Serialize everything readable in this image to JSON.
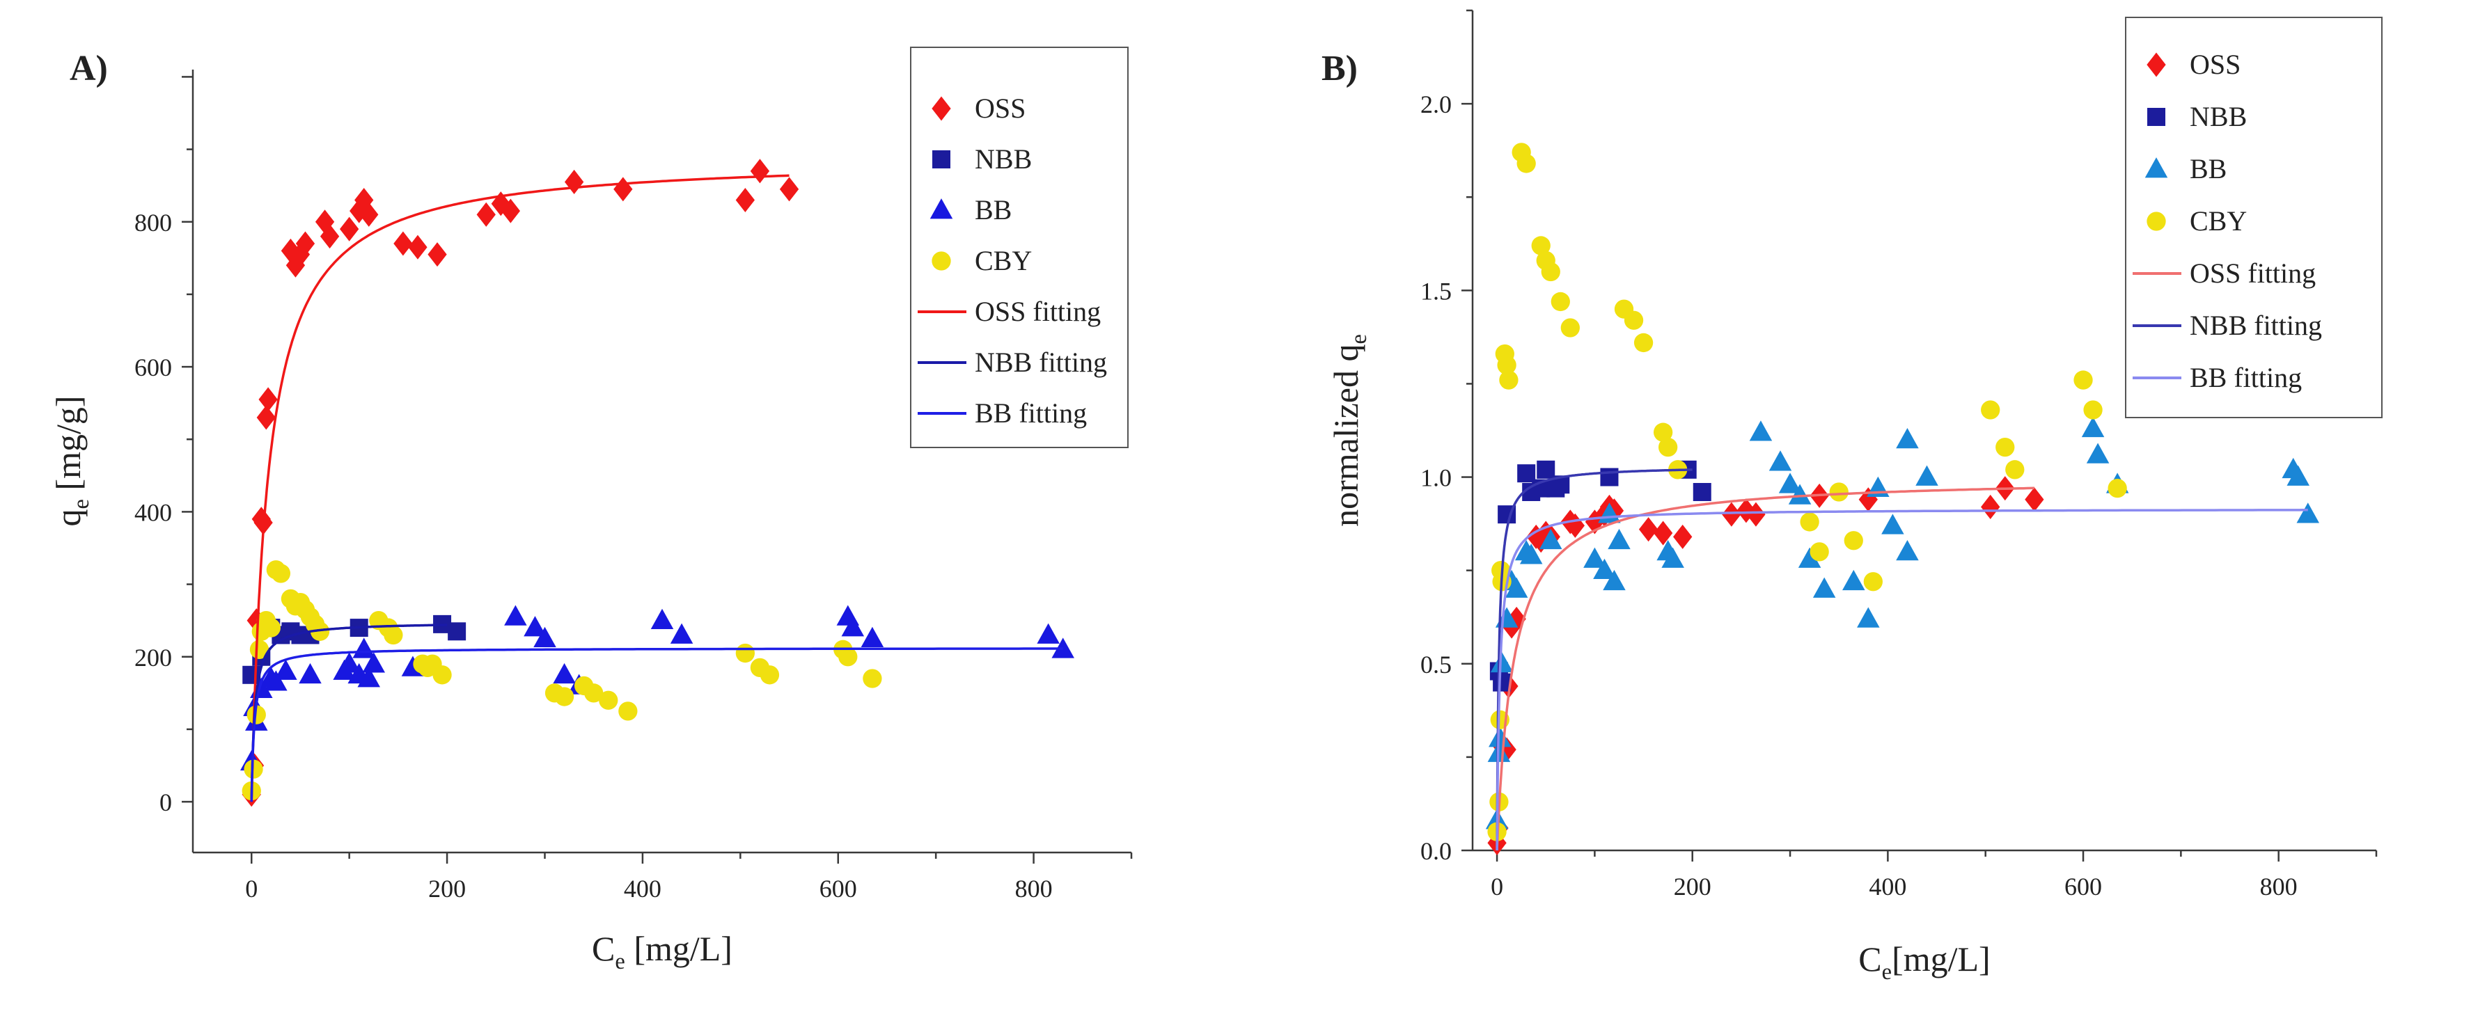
{
  "colors": {
    "OSS": "#f01818",
    "NBB": "#1c1c9c",
    "BB_A": "#1818e0",
    "BB_B": "#1a86d6",
    "CBY": "#f0e010",
    "OSS_fit": "#f01818",
    "NBB_fit": "#1a1aa8",
    "BB_fit_A": "#1e1ee6",
    "OSS_fit_B": "#f07070",
    "NBB_fit_B": "#3838b0",
    "BB_fit_B": "#8a8af0"
  },
  "chart_data": [
    {
      "type": "scatter",
      "panel_label": "A)",
      "title": "",
      "xlabel_main": "C",
      "xlabel_sub": "e",
      "xlabel_rest": " [mg/L]",
      "ylabel_main": "q",
      "ylabel_sub": "e",
      "ylabel_rest": " [mg/g]",
      "xlim": [
        -60,
        900
      ],
      "ylim": [
        -70,
        1010
      ],
      "xticks": [
        0,
        200,
        400,
        600,
        800
      ],
      "xtick_labels": [
        "0",
        "200",
        "400",
        "600",
        "800"
      ],
      "yticks": [
        0,
        200,
        400,
        600,
        800
      ],
      "ytick_labels": [
        "0",
        "200",
        "400",
        "600",
        "800"
      ],
      "legend": [
        "OSS",
        "NBB",
        "BB",
        "CBY",
        "OSS fitting",
        "NBB fitting",
        "BB fitting"
      ],
      "legend_position": "top-right",
      "series": [
        {
          "name": "OSS",
          "marker": "diamond",
          "color_key": "OSS",
          "points": [
            [
              0,
              10
            ],
            [
              3,
              50
            ],
            [
              5,
              250
            ],
            [
              10,
              390
            ],
            [
              12,
              385
            ],
            [
              15,
              530
            ],
            [
              17,
              555
            ],
            [
              40,
              760
            ],
            [
              45,
              740
            ],
            [
              50,
              755
            ],
            [
              55,
              770
            ],
            [
              75,
              800
            ],
            [
              80,
              780
            ],
            [
              100,
              790
            ],
            [
              110,
              815
            ],
            [
              115,
              830
            ],
            [
              120,
              810
            ],
            [
              155,
              770
            ],
            [
              170,
              765
            ],
            [
              190,
              755
            ],
            [
              240,
              810
            ],
            [
              255,
              825
            ],
            [
              265,
              815
            ],
            [
              330,
              855
            ],
            [
              380,
              845
            ],
            [
              505,
              830
            ],
            [
              520,
              870
            ],
            [
              550,
              845
            ]
          ]
        },
        {
          "name": "NBB",
          "marker": "square",
          "color_key": "NBB",
          "points": [
            [
              0,
              175
            ],
            [
              10,
              200
            ],
            [
              20,
              240
            ],
            [
              30,
              230
            ],
            [
              40,
              235
            ],
            [
              50,
              230
            ],
            [
              60,
              230
            ],
            [
              110,
              240
            ],
            [
              195,
              245
            ],
            [
              210,
              235
            ]
          ]
        },
        {
          "name": "BB",
          "marker": "triangle",
          "color_key": "BB_A",
          "points": [
            [
              0,
              55
            ],
            [
              3,
              130
            ],
            [
              5,
              110
            ],
            [
              10,
              155
            ],
            [
              20,
              170
            ],
            [
              25,
              165
            ],
            [
              35,
              180
            ],
            [
              60,
              175
            ],
            [
              95,
              180
            ],
            [
              100,
              190
            ],
            [
              110,
              175
            ],
            [
              115,
              210
            ],
            [
              120,
              170
            ],
            [
              125,
              190
            ],
            [
              165,
              185
            ],
            [
              270,
              255
            ],
            [
              290,
              240
            ],
            [
              300,
              225
            ],
            [
              320,
              175
            ],
            [
              335,
              160
            ],
            [
              420,
              250
            ],
            [
              440,
              230
            ],
            [
              610,
              255
            ],
            [
              615,
              240
            ],
            [
              635,
              225
            ],
            [
              815,
              230
            ],
            [
              830,
              210
            ]
          ]
        },
        {
          "name": "CBY",
          "marker": "circle",
          "color_key": "CBY",
          "points": [
            [
              0,
              15
            ],
            [
              2,
              45
            ],
            [
              5,
              120
            ],
            [
              8,
              210
            ],
            [
              10,
              235
            ],
            [
              15,
              250
            ],
            [
              20,
              240
            ],
            [
              25,
              320
            ],
            [
              30,
              315
            ],
            [
              40,
              280
            ],
            [
              45,
              270
            ],
            [
              50,
              275
            ],
            [
              55,
              265
            ],
            [
              60,
              255
            ],
            [
              65,
              245
            ],
            [
              70,
              235
            ],
            [
              130,
              250
            ],
            [
              140,
              240
            ],
            [
              145,
              230
            ],
            [
              175,
              190
            ],
            [
              180,
              185
            ],
            [
              185,
              190
            ],
            [
              195,
              175
            ],
            [
              310,
              150
            ],
            [
              320,
              145
            ],
            [
              340,
              160
            ],
            [
              350,
              150
            ],
            [
              365,
              140
            ],
            [
              385,
              125
            ],
            [
              505,
              205
            ],
            [
              520,
              185
            ],
            [
              530,
              175
            ],
            [
              605,
              210
            ],
            [
              610,
              200
            ],
            [
              635,
              170
            ]
          ]
        }
      ],
      "fits": [
        {
          "name": "OSS fitting",
          "model": "langmuir",
          "qmax": 890,
          "K": 0.06,
          "x_end": 550,
          "color_key": "OSS_fit"
        },
        {
          "name": "NBB fitting",
          "model": "langmuir",
          "qmax": 248,
          "K": 0.3,
          "x_end": 200,
          "color_key": "NBB_fit"
        },
        {
          "name": "BB fitting",
          "model": "langmuir",
          "qmax": 212,
          "K": 0.35,
          "x_end": 830,
          "color_key": "BB_fit_A"
        }
      ]
    },
    {
      "type": "scatter",
      "panel_label": "B)",
      "title": "",
      "xlabel_main": "C",
      "xlabel_sub": "e",
      "xlabel_rest": "[mg/L]",
      "ylabel_main": "normalized q",
      "ylabel_sub": "e",
      "ylabel_rest": "",
      "xlim": [
        -25,
        900
      ],
      "ylim": [
        0,
        2.25
      ],
      "xticks": [
        0,
        200,
        400,
        600,
        800
      ],
      "xtick_labels": [
        "0",
        "200",
        "400",
        "600",
        "800"
      ],
      "yticks": [
        0,
        0.5,
        1.0,
        1.5,
        2.0
      ],
      "ytick_labels": [
        "0.0",
        "0.5",
        "1.0",
        "1.5",
        "2.0"
      ],
      "legend": [
        "OSS",
        "NBB",
        "BB",
        "CBY",
        "OSS fitting",
        "NBB fitting",
        "BB fitting"
      ],
      "legend_position": "top-right",
      "series": [
        {
          "name": "OSS",
          "marker": "diamond",
          "color_key": "OSS",
          "points": [
            [
              0,
              0.02
            ],
            [
              2,
              0.06
            ],
            [
              5,
              0.28
            ],
            [
              10,
              0.27
            ],
            [
              12,
              0.44
            ],
            [
              15,
              0.6
            ],
            [
              20,
              0.62
            ],
            [
              40,
              0.84
            ],
            [
              45,
              0.83
            ],
            [
              50,
              0.85
            ],
            [
              55,
              0.84
            ],
            [
              75,
              0.88
            ],
            [
              80,
              0.87
            ],
            [
              100,
              0.88
            ],
            [
              110,
              0.9
            ],
            [
              115,
              0.92
            ],
            [
              120,
              0.91
            ],
            [
              155,
              0.86
            ],
            [
              170,
              0.85
            ],
            [
              190,
              0.84
            ],
            [
              240,
              0.9
            ],
            [
              255,
              0.91
            ],
            [
              265,
              0.9
            ],
            [
              330,
              0.95
            ],
            [
              380,
              0.94
            ],
            [
              505,
              0.92
            ],
            [
              520,
              0.97
            ],
            [
              550,
              0.94
            ]
          ]
        },
        {
          "name": "NBB",
          "marker": "square",
          "color_key": "NBB",
          "points": [
            [
              2,
              0.48
            ],
            [
              5,
              0.45
            ],
            [
              10,
              0.9
            ],
            [
              30,
              1.01
            ],
            [
              35,
              0.96
            ],
            [
              45,
              0.97
            ],
            [
              50,
              1.02
            ],
            [
              60,
              0.97
            ],
            [
              65,
              0.98
            ],
            [
              115,
              1.0
            ],
            [
              195,
              1.02
            ],
            [
              210,
              0.96
            ]
          ]
        },
        {
          "name": "BB",
          "marker": "triangle",
          "color_key": "BB_B",
          "points": [
            [
              0,
              0.08
            ],
            [
              2,
              0.26
            ],
            [
              3,
              0.3
            ],
            [
              5,
              0.5
            ],
            [
              10,
              0.62
            ],
            [
              15,
              0.72
            ],
            [
              20,
              0.7
            ],
            [
              30,
              0.8
            ],
            [
              35,
              0.79
            ],
            [
              55,
              0.83
            ],
            [
              100,
              0.78
            ],
            [
              110,
              0.75
            ],
            [
              115,
              0.9
            ],
            [
              120,
              0.72
            ],
            [
              125,
              0.83
            ],
            [
              175,
              0.8
            ],
            [
              180,
              0.78
            ],
            [
              270,
              1.12
            ],
            [
              290,
              1.04
            ],
            [
              300,
              0.98
            ],
            [
              310,
              0.95
            ],
            [
              320,
              0.78
            ],
            [
              335,
              0.7
            ],
            [
              365,
              0.72
            ],
            [
              380,
              0.62
            ],
            [
              390,
              0.97
            ],
            [
              405,
              0.87
            ],
            [
              420,
              0.8
            ],
            [
              420,
              1.1
            ],
            [
              440,
              1.0
            ],
            [
              610,
              1.13
            ],
            [
              615,
              1.06
            ],
            [
              635,
              0.98
            ],
            [
              815,
              1.02
            ],
            [
              820,
              1.0
            ],
            [
              830,
              0.9
            ]
          ]
        },
        {
          "name": "CBY",
          "marker": "circle",
          "color_key": "CBY",
          "points": [
            [
              0,
              0.05
            ],
            [
              2,
              0.13
            ],
            [
              3,
              0.35
            ],
            [
              4,
              0.75
            ],
            [
              5,
              0.72
            ],
            [
              8,
              1.33
            ],
            [
              10,
              1.3
            ],
            [
              12,
              1.26
            ],
            [
              25,
              1.87
            ],
            [
              30,
              1.84
            ],
            [
              45,
              1.62
            ],
            [
              50,
              1.58
            ],
            [
              55,
              1.55
            ],
            [
              65,
              1.47
            ],
            [
              75,
              1.4
            ],
            [
              130,
              1.45
            ],
            [
              140,
              1.42
            ],
            [
              150,
              1.36
            ],
            [
              170,
              1.12
            ],
            [
              175,
              1.08
            ],
            [
              185,
              1.02
            ],
            [
              320,
              0.88
            ],
            [
              330,
              0.8
            ],
            [
              350,
              0.96
            ],
            [
              365,
              0.83
            ],
            [
              385,
              0.72
            ],
            [
              505,
              1.18
            ],
            [
              520,
              1.08
            ],
            [
              530,
              1.02
            ],
            [
              600,
              1.26
            ],
            [
              610,
              1.18
            ],
            [
              635,
              0.97
            ]
          ]
        }
      ],
      "fits": [
        {
          "name": "OSS fitting",
          "model": "langmuir",
          "qmax": 1.0,
          "K": 0.06,
          "x_end": 550,
          "color_key": "OSS_fit_B"
        },
        {
          "name": "NBB fitting",
          "model": "langmuir",
          "qmax": 1.03,
          "K": 0.5,
          "x_end": 200,
          "color_key": "NBB_fit_B"
        },
        {
          "name": "BB fitting",
          "model": "langmuir",
          "qmax": 0.915,
          "K": 0.35,
          "x_end": 830,
          "color_key": "BB_fit_B"
        }
      ]
    }
  ]
}
